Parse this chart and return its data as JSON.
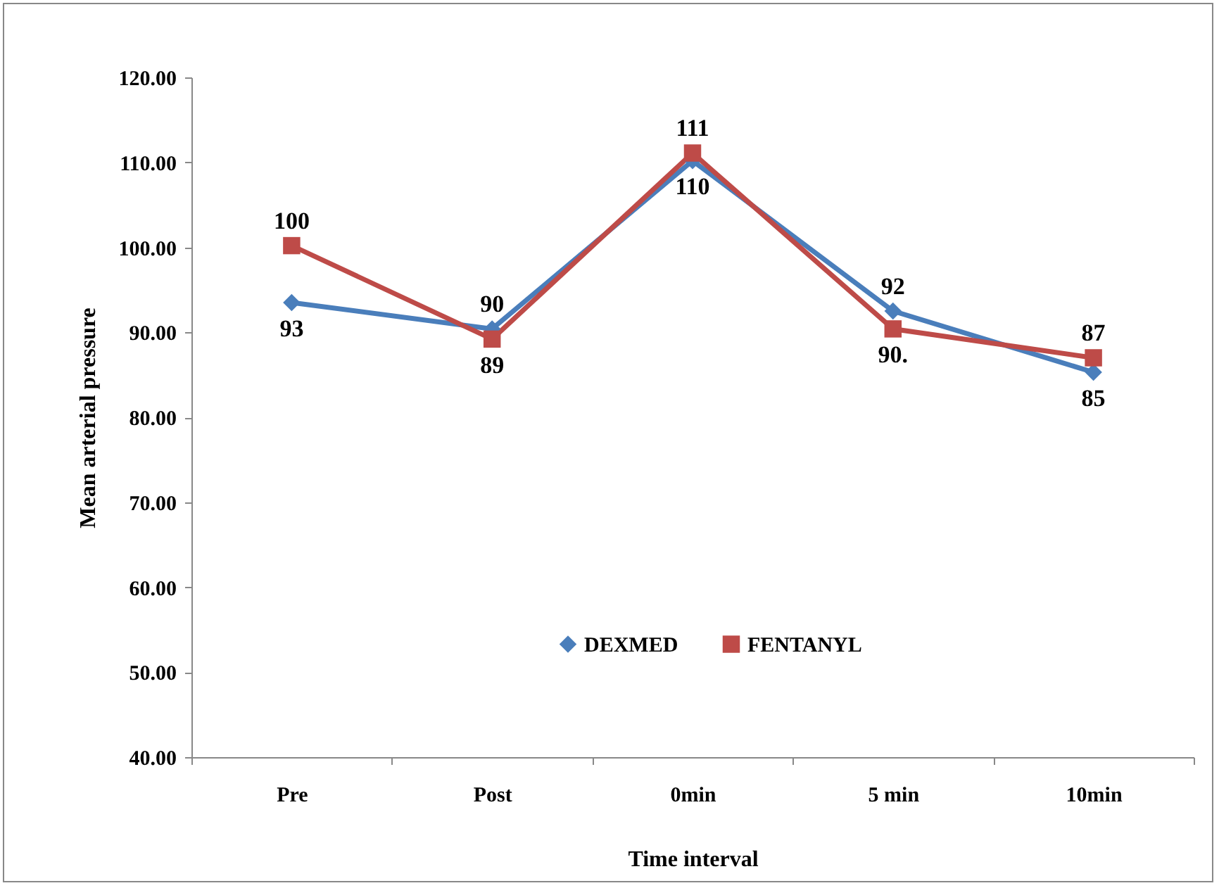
{
  "chart_data": {
    "type": "line",
    "xlabel": "Time interval",
    "ylabel": "Mean arterial pressure",
    "categories": [
      "Pre",
      "Post",
      "0min",
      "5 min",
      "10min"
    ],
    "series": [
      {
        "name": "DEXMED",
        "color": "#4a7ebb",
        "marker": "diamond",
        "values": [
          93.5,
          90.4,
          110.2,
          92.5,
          85.3
        ],
        "value_labels": [
          "93",
          "90",
          "110",
          "92",
          "85"
        ]
      },
      {
        "name": "FENTANYL",
        "color": "#be4b48",
        "marker": "square",
        "values": [
          100.2,
          89.2,
          111.1,
          90.4,
          87.0
        ],
        "value_labels": [
          "100",
          "89",
          "111",
          "90.",
          "87"
        ]
      }
    ],
    "ylim": [
      40,
      120
    ],
    "yticks": [
      {
        "value": 40,
        "label": "40.00"
      },
      {
        "value": 50,
        "label": "50.00"
      },
      {
        "value": 60,
        "label": "60.00"
      },
      {
        "value": 70,
        "label": "70.00"
      },
      {
        "value": 80,
        "label": "80.00"
      },
      {
        "value": 90,
        "label": "90.00"
      },
      {
        "value": 100,
        "label": "100.00"
      },
      {
        "value": 110,
        "label": "110.00"
      },
      {
        "value": 120,
        "label": "120.00"
      }
    ],
    "grid": false,
    "legend": "bottom"
  }
}
